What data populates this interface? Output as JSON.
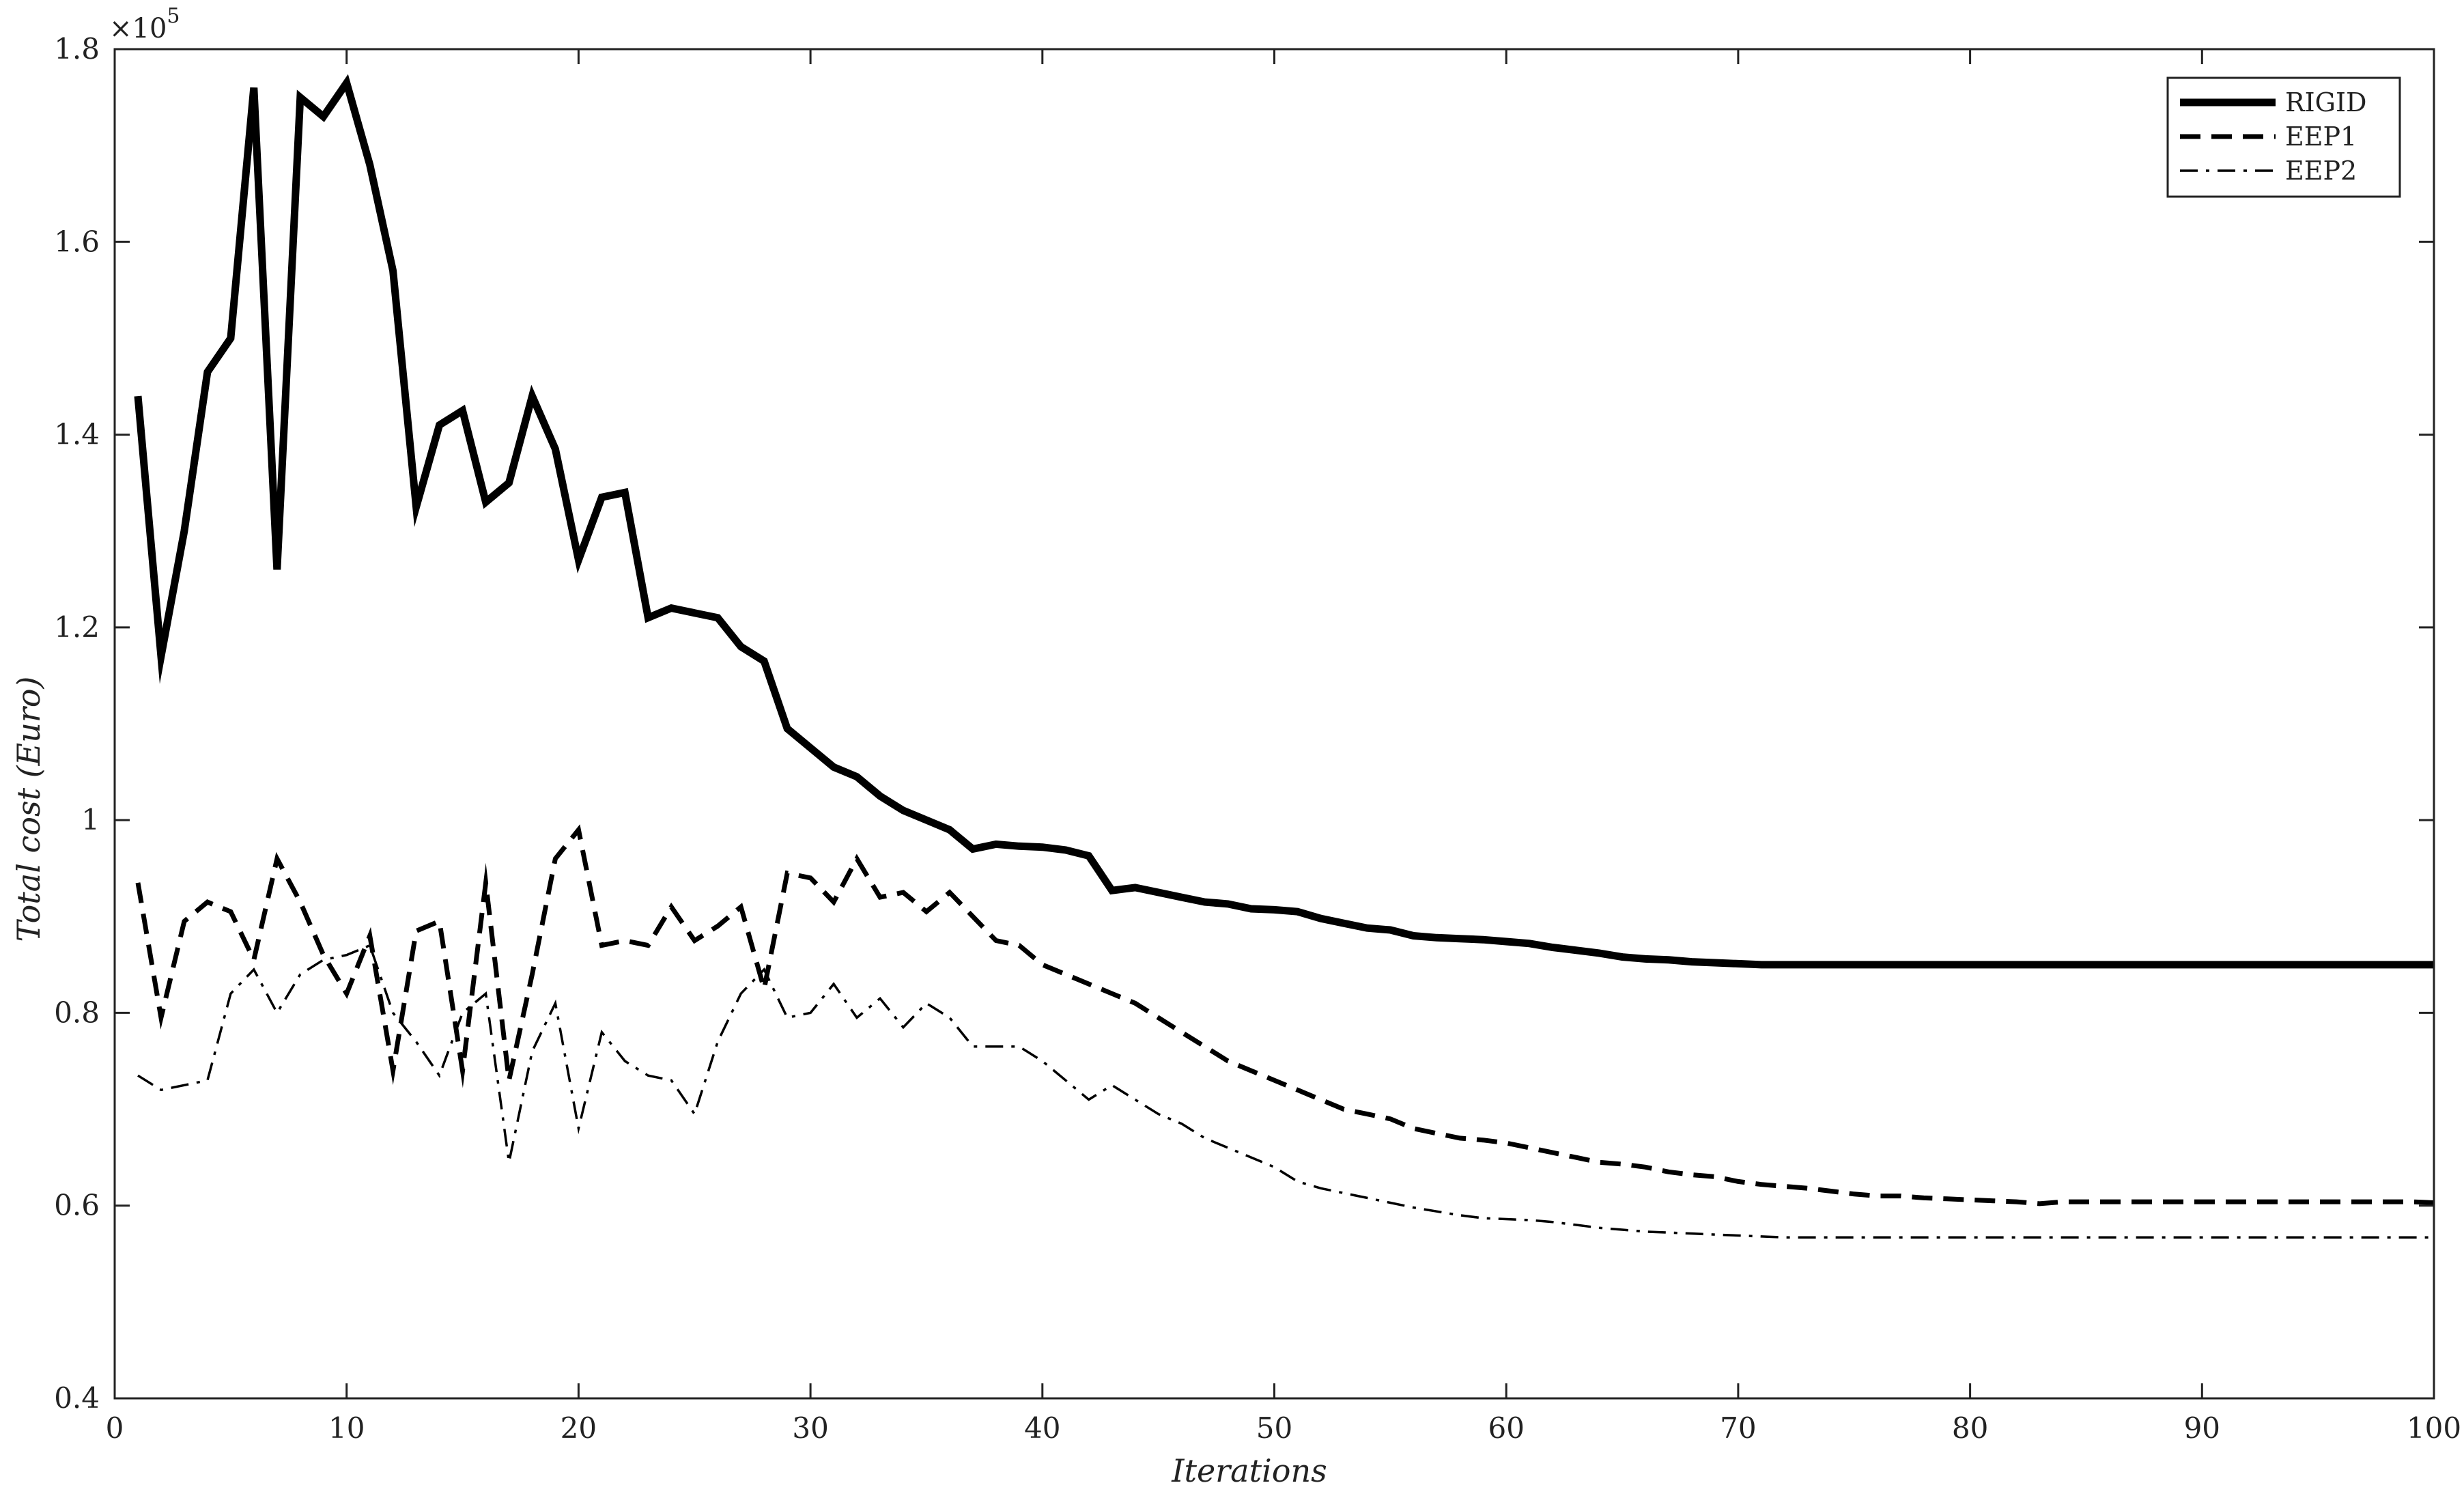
{
  "chart_data": {
    "type": "line",
    "title": "",
    "xlabel": "Iterations",
    "ylabel": "Total cost (Euro)",
    "y_multiplier_label": "×10",
    "y_multiplier_exponent": "5",
    "xlim": [
      0,
      100
    ],
    "ylim": [
      0.4,
      1.8
    ],
    "x_ticks": [
      0,
      10,
      20,
      30,
      40,
      50,
      60,
      70,
      80,
      90,
      100
    ],
    "x_tick_labels": [
      "0",
      "10",
      "20",
      "30",
      "40",
      "50",
      "60",
      "70",
      "80",
      "90",
      "100"
    ],
    "y_ticks": [
      0.4,
      0.6,
      0.8,
      1.0,
      1.2,
      1.4,
      1.6,
      1.8
    ],
    "y_tick_labels": [
      "0.4",
      "0.6",
      "0.8",
      "1",
      "1.2",
      "1.4",
      "1.6",
      "1.8"
    ],
    "grid": false,
    "legend_position": "top-right",
    "series": [
      {
        "name": "RIGID",
        "style": "solid-thick",
        "color": "#000000",
        "x": [
          1,
          2,
          3,
          4,
          5,
          6,
          7,
          8,
          9,
          10,
          11,
          12,
          13,
          14,
          15,
          16,
          17,
          18,
          19,
          20,
          21,
          22,
          23,
          24,
          25,
          26,
          27,
          28,
          29,
          30,
          31,
          32,
          33,
          34,
          35,
          36,
          37,
          38,
          39,
          40,
          41,
          42,
          43,
          44,
          45,
          46,
          47,
          48,
          49,
          50,
          51,
          52,
          53,
          54,
          55,
          56,
          57,
          58,
          59,
          60,
          61,
          62,
          63,
          64,
          65,
          66,
          67,
          68,
          69,
          70,
          71,
          72,
          73,
          74,
          75,
          76,
          77,
          78,
          79,
          80,
          81,
          82,
          83,
          84,
          85,
          86,
          87,
          88,
          89,
          90,
          91,
          92,
          93,
          94,
          95,
          96,
          97,
          98,
          99,
          100
        ],
        "y": [
          1.44,
          1.17,
          1.3,
          1.465,
          1.5,
          1.76,
          1.26,
          1.75,
          1.73,
          1.765,
          1.68,
          1.57,
          1.325,
          1.41,
          1.425,
          1.33,
          1.35,
          1.44,
          1.385,
          1.27,
          1.335,
          1.34,
          1.21,
          1.22,
          1.215,
          1.21,
          1.18,
          1.165,
          1.095,
          1.075,
          1.055,
          1.045,
          1.025,
          1.01,
          1.0,
          0.99,
          0.97,
          0.975,
          0.973,
          0.972,
          0.969,
          0.963,
          0.927,
          0.93,
          0.925,
          0.92,
          0.915,
          0.913,
          0.908,
          0.907,
          0.905,
          0.898,
          0.893,
          0.888,
          0.886,
          0.88,
          0.878,
          0.877,
          0.876,
          0.874,
          0.872,
          0.868,
          0.865,
          0.862,
          0.858,
          0.856,
          0.855,
          0.853,
          0.852,
          0.851,
          0.85,
          0.85,
          0.85,
          0.85,
          0.85,
          0.85,
          0.85,
          0.85,
          0.85,
          0.85,
          0.85,
          0.85,
          0.85,
          0.85,
          0.85,
          0.85,
          0.85,
          0.85,
          0.85,
          0.85,
          0.85,
          0.85,
          0.85,
          0.85,
          0.85,
          0.85,
          0.85,
          0.85,
          0.85,
          0.85
        ]
      },
      {
        "name": "EEP1",
        "style": "dashed",
        "color": "#000000",
        "x": [
          1,
          2,
          3,
          4,
          5,
          6,
          7,
          8,
          9,
          10,
          11,
          12,
          13,
          14,
          15,
          16,
          17,
          18,
          19,
          20,
          21,
          22,
          23,
          24,
          25,
          26,
          27,
          28,
          29,
          30,
          31,
          32,
          33,
          34,
          35,
          36,
          37,
          38,
          39,
          40,
          41,
          42,
          43,
          44,
          45,
          46,
          47,
          48,
          49,
          50,
          51,
          52,
          53,
          54,
          55,
          56,
          57,
          58,
          59,
          60,
          61,
          62,
          63,
          64,
          65,
          66,
          67,
          68,
          69,
          70,
          71,
          72,
          73,
          74,
          75,
          76,
          77,
          78,
          79,
          80,
          81,
          82,
          83,
          84,
          85,
          86,
          87,
          88,
          89,
          90,
          91,
          92,
          93,
          94,
          95,
          96,
          97,
          98,
          99,
          100
        ],
        "y": [
          0.935,
          0.795,
          0.895,
          0.915,
          0.905,
          0.855,
          0.96,
          0.915,
          0.86,
          0.82,
          0.88,
          0.74,
          0.885,
          0.895,
          0.74,
          0.935,
          0.73,
          0.84,
          0.96,
          0.99,
          0.87,
          0.875,
          0.87,
          0.91,
          0.875,
          0.89,
          0.91,
          0.825,
          0.945,
          0.94,
          0.915,
          0.96,
          0.92,
          0.925,
          0.905,
          0.925,
          0.9,
          0.875,
          0.87,
          0.85,
          0.84,
          0.83,
          0.82,
          0.81,
          0.795,
          0.78,
          0.765,
          0.75,
          0.74,
          0.73,
          0.72,
          0.71,
          0.7,
          0.695,
          0.69,
          0.68,
          0.675,
          0.67,
          0.668,
          0.665,
          0.66,
          0.655,
          0.65,
          0.645,
          0.643,
          0.64,
          0.635,
          0.632,
          0.63,
          0.625,
          0.622,
          0.62,
          0.618,
          0.615,
          0.612,
          0.61,
          0.61,
          0.608,
          0.607,
          0.606,
          0.605,
          0.604,
          0.602,
          0.604,
          0.604,
          0.604,
          0.604,
          0.604,
          0.604,
          0.604,
          0.604,
          0.604,
          0.604,
          0.604,
          0.604,
          0.604,
          0.604,
          0.604,
          0.604,
          0.603
        ]
      },
      {
        "name": "EEP2",
        "style": "dash-dot",
        "color": "#000000",
        "x": [
          1,
          2,
          3,
          4,
          5,
          6,
          7,
          8,
          9,
          10,
          11,
          12,
          13,
          14,
          15,
          16,
          17,
          18,
          19,
          20,
          21,
          22,
          23,
          24,
          25,
          26,
          27,
          28,
          29,
          30,
          31,
          32,
          33,
          34,
          35,
          36,
          37,
          38,
          39,
          40,
          41,
          42,
          43,
          44,
          45,
          46,
          47,
          48,
          49,
          50,
          51,
          52,
          53,
          54,
          55,
          56,
          57,
          58,
          59,
          60,
          61,
          62,
          63,
          64,
          65,
          66,
          67,
          68,
          69,
          70,
          71,
          72,
          73,
          74,
          75,
          76,
          77,
          78,
          79,
          80,
          81,
          82,
          83,
          84,
          85,
          86,
          87,
          88,
          89,
          90,
          91,
          92,
          93,
          94,
          95,
          96,
          97,
          98,
          99,
          100
        ],
        "y": [
          0.735,
          0.72,
          0.725,
          0.73,
          0.82,
          0.845,
          0.8,
          0.84,
          0.855,
          0.86,
          0.87,
          0.8,
          0.77,
          0.735,
          0.8,
          0.82,
          0.645,
          0.76,
          0.81,
          0.68,
          0.78,
          0.75,
          0.735,
          0.73,
          0.695,
          0.77,
          0.82,
          0.845,
          0.795,
          0.8,
          0.83,
          0.795,
          0.815,
          0.785,
          0.81,
          0.795,
          0.765,
          0.765,
          0.765,
          0.75,
          0.73,
          0.71,
          0.725,
          0.71,
          0.695,
          0.685,
          0.67,
          0.66,
          0.65,
          0.64,
          0.625,
          0.618,
          0.613,
          0.608,
          0.603,
          0.598,
          0.594,
          0.59,
          0.587,
          0.586,
          0.585,
          0.583,
          0.58,
          0.577,
          0.575,
          0.573,
          0.572,
          0.571,
          0.57,
          0.569,
          0.568,
          0.567,
          0.567,
          0.567,
          0.567,
          0.567,
          0.567,
          0.567,
          0.567,
          0.567,
          0.567,
          0.567,
          0.567,
          0.567,
          0.567,
          0.567,
          0.567,
          0.567,
          0.567,
          0.567,
          0.567,
          0.567,
          0.567,
          0.567,
          0.567,
          0.567,
          0.567,
          0.567,
          0.567,
          0.567
        ]
      }
    ]
  }
}
